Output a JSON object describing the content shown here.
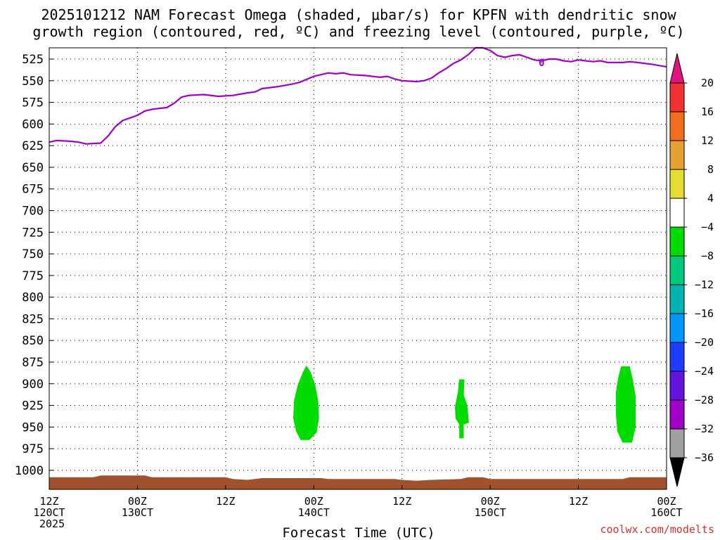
{
  "chart_data": {
    "type": "area",
    "title": "2025101212 NAM Forecast Omega (shaded, μbar/s) for KPFN with dendritic snow",
    "subtitle": "growth region (contoured, red, ºC) and freezing level (contoured, purple, ºC)",
    "xlabel": "Forecast Time (UTC)",
    "ylabel": "",
    "credit": "coolwx.com/modelts",
    "y_ticks": [
      525,
      550,
      575,
      600,
      625,
      650,
      675,
      700,
      725,
      750,
      775,
      800,
      825,
      850,
      875,
      900,
      925,
      950,
      975,
      1000
    ],
    "x_ticks": [
      {
        "hour": 0,
        "line1": "12Z",
        "line2": "120CT",
        "line3": "2025"
      },
      {
        "hour": 12,
        "line1": "00Z",
        "line2": "130CT",
        "line3": ""
      },
      {
        "hour": 24,
        "line1": "12Z",
        "line2": "",
        "line3": ""
      },
      {
        "hour": 36,
        "line1": "00Z",
        "line2": "140CT",
        "line3": ""
      },
      {
        "hour": 48,
        "line1": "12Z",
        "line2": "",
        "line3": ""
      },
      {
        "hour": 60,
        "line1": "00Z",
        "line2": "150CT",
        "line3": ""
      },
      {
        "hour": 72,
        "line1": "12Z",
        "line2": "",
        "line3": ""
      },
      {
        "hour": 84,
        "line1": "00Z",
        "line2": "160CT",
        "line3": ""
      }
    ],
    "x_range_hours": [
      0,
      84
    ],
    "y_range_hPa": [
      512,
      1022
    ],
    "grid": true,
    "freezing_level": {
      "color": "#a000c8",
      "contour_label": "0",
      "contour_label_at": [
        67,
        529
      ],
      "points": [
        [
          0,
          621
        ],
        [
          1,
          619
        ],
        [
          3,
          620
        ],
        [
          4,
          621
        ],
        [
          5,
          623
        ],
        [
          7,
          622
        ],
        [
          8,
          614
        ],
        [
          9,
          603
        ],
        [
          10,
          596
        ],
        [
          11,
          593
        ],
        [
          12,
          590
        ],
        [
          13,
          585
        ],
        [
          14,
          583
        ],
        [
          16,
          581
        ],
        [
          17,
          576
        ],
        [
          18,
          569
        ],
        [
          19,
          567
        ],
        [
          21,
          566
        ],
        [
          23,
          568
        ],
        [
          25,
          567
        ],
        [
          27,
          564
        ],
        [
          28,
          563
        ],
        [
          29,
          559
        ],
        [
          31,
          557
        ],
        [
          33,
          554
        ],
        [
          34,
          552
        ],
        [
          36,
          545
        ],
        [
          37,
          543
        ],
        [
          38,
          541
        ],
        [
          39,
          542
        ],
        [
          40,
          541
        ],
        [
          41,
          543
        ],
        [
          43,
          544
        ],
        [
          44,
          545
        ],
        [
          45,
          546
        ],
        [
          46,
          545
        ],
        [
          47,
          548
        ],
        [
          48,
          550
        ],
        [
          50,
          551
        ],
        [
          51,
          550
        ],
        [
          52,
          547
        ],
        [
          53,
          541
        ],
        [
          54,
          536
        ],
        [
          55,
          530
        ],
        [
          56,
          526
        ],
        [
          57,
          520
        ],
        [
          58,
          512
        ],
        [
          59,
          512
        ],
        [
          60,
          515
        ],
        [
          61,
          521
        ],
        [
          62,
          523
        ],
        [
          63,
          521
        ],
        [
          64,
          520
        ],
        [
          65,
          523
        ],
        [
          66,
          526
        ],
        [
          67,
          527
        ],
        [
          68,
          525
        ],
        [
          69,
          525
        ],
        [
          70,
          527
        ],
        [
          71,
          528
        ],
        [
          72,
          526
        ],
        [
          73,
          527
        ],
        [
          74,
          528
        ],
        [
          75,
          527
        ],
        [
          76,
          529
        ],
        [
          77,
          529
        ],
        [
          78,
          529
        ],
        [
          79,
          528
        ],
        [
          80,
          529
        ],
        [
          81,
          530
        ],
        [
          82,
          531
        ],
        [
          84,
          534
        ]
      ]
    },
    "surface_terrain": {
      "color": "#a0522d",
      "points": [
        [
          0,
          1008
        ],
        [
          6,
          1008
        ],
        [
          7,
          1006
        ],
        [
          13,
          1006
        ],
        [
          14,
          1008
        ],
        [
          24,
          1008
        ],
        [
          25,
          1010
        ],
        [
          27,
          1011
        ],
        [
          29,
          1009
        ],
        [
          37,
          1009
        ],
        [
          38,
          1010
        ],
        [
          47,
          1010
        ],
        [
          48,
          1011
        ],
        [
          50,
          1012
        ],
        [
          52,
          1011
        ],
        [
          56,
          1010
        ],
        [
          57,
          1008
        ],
        [
          59,
          1008
        ],
        [
          60,
          1010
        ],
        [
          78,
          1010
        ],
        [
          79,
          1008
        ],
        [
          84,
          1008
        ]
      ]
    },
    "omega_regions": [
      {
        "color": "#00dc00",
        "range": "-8 to -4",
        "points": [
          [
            33.2,
            940
          ],
          [
            33.3,
            920
          ],
          [
            33.8,
            902
          ],
          [
            34.5,
            887
          ],
          [
            35.0,
            879
          ],
          [
            35.6,
            887
          ],
          [
            36.2,
            902
          ],
          [
            36.6,
            920
          ],
          [
            36.7,
            940
          ],
          [
            36.4,
            956
          ],
          [
            35.4,
            965
          ],
          [
            34.2,
            965
          ],
          [
            33.6,
            955
          ]
        ]
      },
      {
        "color": "#00dc00",
        "range": "-8 to -4",
        "points": [
          [
            55.2,
            927
          ],
          [
            55.6,
            910
          ],
          [
            55.8,
            895
          ],
          [
            56.5,
            895
          ],
          [
            56.4,
            913
          ],
          [
            56.9,
            925
          ],
          [
            57.1,
            945
          ],
          [
            56.4,
            947
          ],
          [
            56.4,
            963
          ],
          [
            55.8,
            963
          ],
          [
            55.8,
            947
          ],
          [
            55.3,
            940
          ]
        ]
      },
      {
        "color": "#00dc00",
        "range": "-8 to -4",
        "points": [
          [
            77.1,
            910
          ],
          [
            77.4,
            894
          ],
          [
            77.8,
            880
          ],
          [
            79.0,
            880
          ],
          [
            79.4,
            895
          ],
          [
            79.8,
            915
          ],
          [
            79.8,
            950
          ],
          [
            79.3,
            968
          ],
          [
            78.0,
            968
          ],
          [
            77.3,
            955
          ],
          [
            77.1,
            935
          ]
        ]
      }
    ],
    "colorbar": {
      "labels": [
        "20",
        "16",
        "12",
        "8",
        "4",
        "−4",
        "−8",
        "−12",
        "−16",
        "−20",
        "−24",
        "−28",
        "−32",
        "−36"
      ],
      "colors": [
        "#e0147c",
        "#f03232",
        "#f06e1e",
        "#e6a032",
        "#e6dc32",
        "#ffffff",
        "#00dc00",
        "#00c87c",
        "#00b4b4",
        "#0096ff",
        "#1e3cff",
        "#6414dc",
        "#a000c8",
        "#a0a0a0",
        "#000000"
      ]
    }
  }
}
